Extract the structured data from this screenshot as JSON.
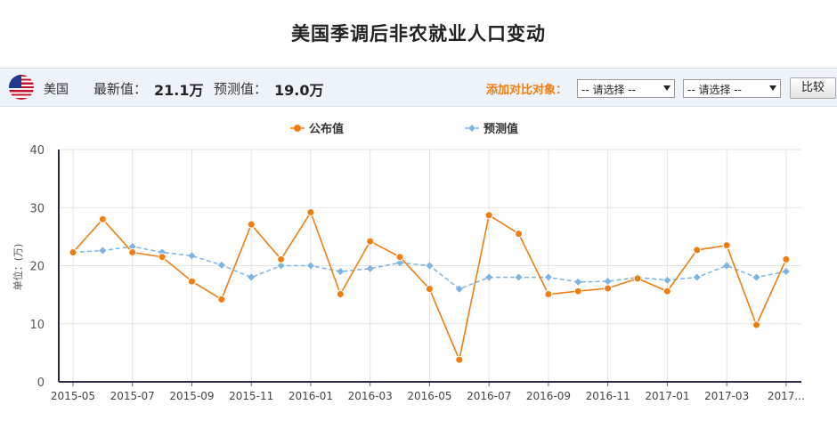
{
  "page": {
    "title": "美国季调后非农就业人口变动"
  },
  "info_bar": {
    "flag_icon": "us-flag-icon",
    "country": "美国",
    "latest_label": "最新值：",
    "latest_value": "21.1万",
    "forecast_label": "预测值：",
    "forecast_value": "19.0万",
    "compare_label": "添加对比对象：",
    "select_1": "-- 请选择 --",
    "select_2": "-- 请选择 --",
    "compare_button": "比较"
  },
  "colors": {
    "published": "#f07d10",
    "forecast": "#7db3e3",
    "compare_label": "#f07d10"
  },
  "chart_data": {
    "type": "line",
    "ylabel": "单位：(万)",
    "ylim": [
      0,
      40
    ],
    "yticks": [
      0,
      10,
      20,
      30,
      40
    ],
    "grid": true,
    "legend_position": "top-center",
    "x": [
      "2015-05",
      "2015-06",
      "2015-07",
      "2015-08",
      "2015-09",
      "2015-10",
      "2015-11",
      "2015-12",
      "2016-01",
      "2016-02",
      "2016-03",
      "2016-04",
      "2016-05",
      "2016-06",
      "2016-07",
      "2016-08",
      "2016-09",
      "2016-10",
      "2016-11",
      "2016-12",
      "2017-01",
      "2017-02",
      "2017-03",
      "2017-04",
      "2017-05"
    ],
    "x_tick_labels": [
      "2015-05",
      "2015-07",
      "2015-09",
      "2015-11",
      "2016-01",
      "2016-03",
      "2016-05",
      "2016-07",
      "2016-09",
      "2016-11",
      "2017-01",
      "2017-03",
      "2017..."
    ],
    "series": [
      {
        "name": "公布值",
        "color": "#f07d10",
        "marker": "circle",
        "values": [
          22.3,
          28.0,
          22.3,
          21.5,
          17.3,
          14.2,
          27.1,
          21.1,
          29.2,
          15.1,
          24.2,
          21.5,
          16.0,
          3.8,
          28.7,
          25.5,
          15.1,
          15.6,
          16.1,
          17.8,
          15.6,
          22.7,
          23.5,
          9.8,
          21.1
        ]
      },
      {
        "name": "预测值",
        "color": "#7db3e3",
        "marker": "diamond",
        "values": [
          22.3,
          22.6,
          23.3,
          22.3,
          21.7,
          20.1,
          18.0,
          20.0,
          20.0,
          19.0,
          19.5,
          20.5,
          20.0,
          16.0,
          18.0,
          18.0,
          18.0,
          17.2,
          17.3,
          18.0,
          17.5,
          18.0,
          20.0,
          18.0,
          19.0
        ]
      }
    ]
  }
}
